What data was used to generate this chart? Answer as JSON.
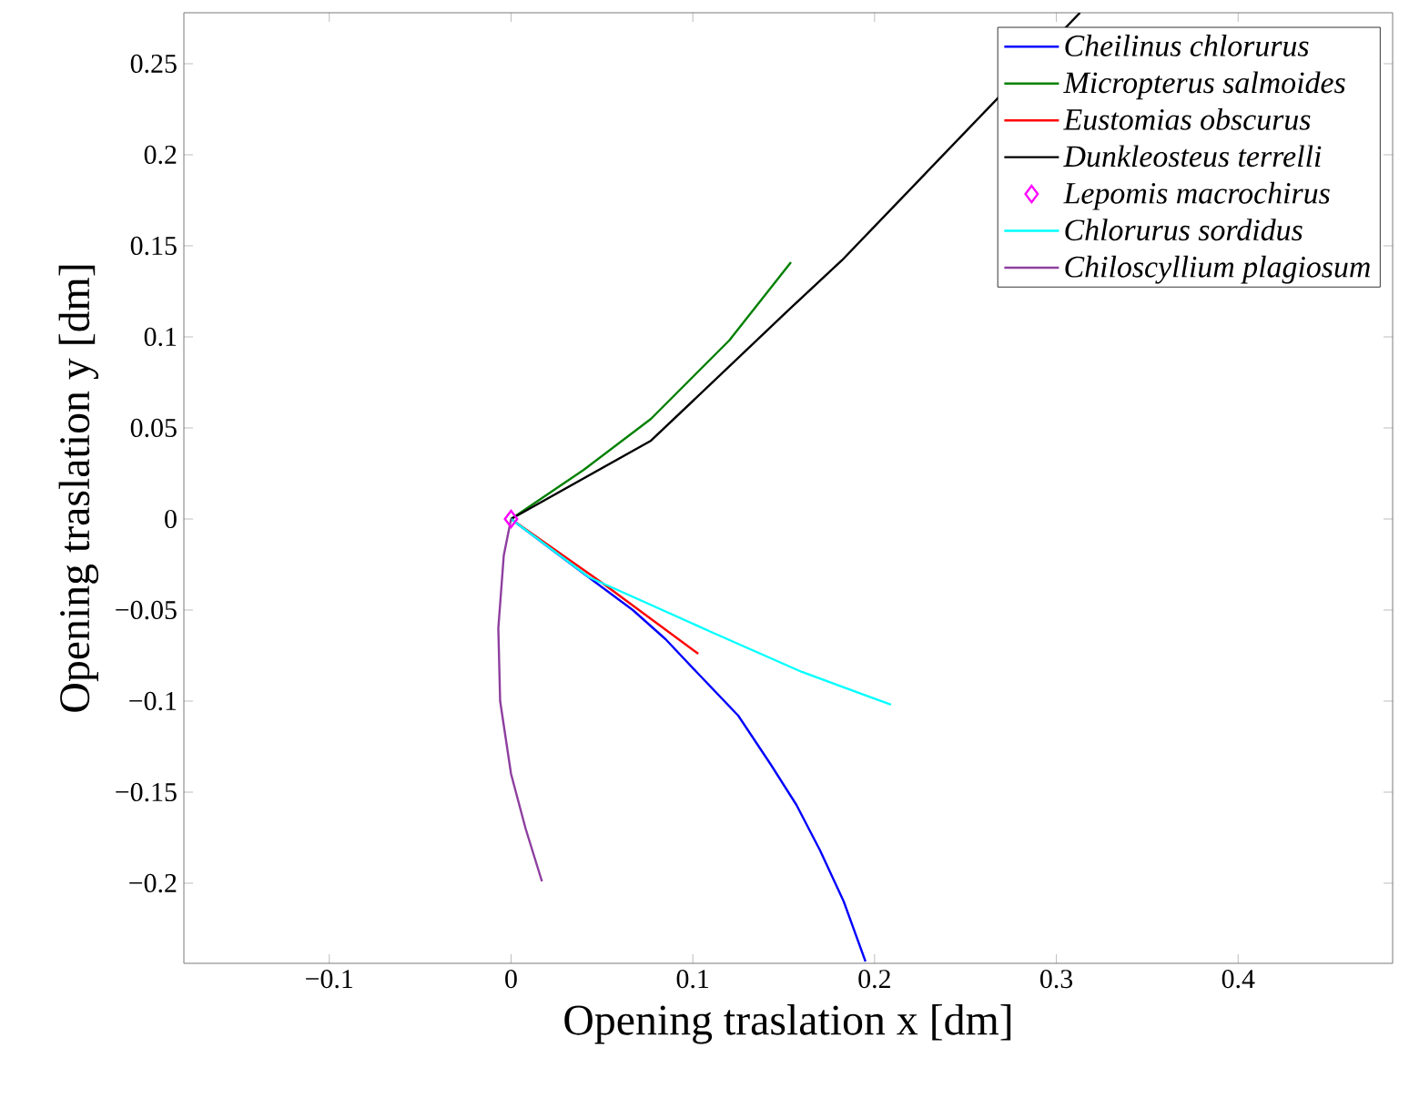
{
  "chart_data": {
    "type": "line",
    "xlabel": "Opening traslation x [dm]",
    "ylabel": "Opening traslation y [dm]",
    "xlim": [
      -0.18,
      0.485
    ],
    "ylim": [
      -0.244,
      0.278
    ],
    "xticks": [
      {
        "value": -0.1,
        "label": "−0.1"
      },
      0,
      0.1,
      0.2,
      0.3,
      0.4
    ],
    "yticks": [
      {
        "value": -0.2,
        "label": "−0.2"
      },
      {
        "value": -0.15,
        "label": "−0.15"
      },
      {
        "value": -0.1,
        "label": "−0.1"
      },
      {
        "value": -0.05,
        "label": "−0.05"
      },
      0,
      0.05,
      0.1,
      0.15,
      0.2,
      0.25
    ],
    "grid": false,
    "legend": "top right",
    "series": [
      {
        "name": "Cheilinus chlorurus",
        "color": "#0000ff",
        "x": [
          0,
          0.04,
          0.067,
          0.085,
          0.103,
          0.125,
          0.143,
          0.157,
          0.17,
          0.183,
          0.195
        ],
        "values": [
          0,
          -0.03,
          -0.05,
          -0.066,
          -0.085,
          -0.108,
          -0.135,
          -0.157,
          -0.182,
          -0.21,
          -0.243
        ]
      },
      {
        "name": "Micropterus salmoides",
        "color": "#008000",
        "x": [
          0,
          0.04,
          0.077,
          0.12,
          0.154
        ],
        "values": [
          0,
          0.027,
          0.055,
          0.098,
          0.141
        ]
      },
      {
        "name": "Eustomias obscurus",
        "color": "#ff0000",
        "x": [
          0,
          0.05,
          0.103
        ],
        "values": [
          0,
          -0.035,
          -0.074
        ]
      },
      {
        "name": "Dunkleosteus terrelli",
        "color": "#000000",
        "x": [
          0,
          0.077,
          0.153,
          0.182,
          0.313
        ],
        "values": [
          0,
          0.043,
          0.115,
          0.142,
          0.278
        ]
      },
      {
        "name": "Lepomis macrochirus",
        "color": "#ff00ff",
        "type": "scatter",
        "marker": "diamond",
        "x": [
          0
        ],
        "values": [
          0
        ]
      },
      {
        "name": "Chlorurus sordidus",
        "color": "#00ffff",
        "x": [
          0,
          0.043,
          0.11,
          0.16,
          0.209
        ],
        "values": [
          0,
          -0.032,
          -0.062,
          -0.084,
          -0.102
        ]
      },
      {
        "name": "Chiloscyllium plagiosum",
        "color": "#8e3ea0",
        "x": [
          0,
          -0.004,
          -0.007,
          -0.006,
          0,
          0.008,
          0.017
        ],
        "values": [
          0,
          -0.02,
          -0.06,
          -0.1,
          -0.14,
          -0.17,
          -0.199
        ]
      }
    ]
  }
}
